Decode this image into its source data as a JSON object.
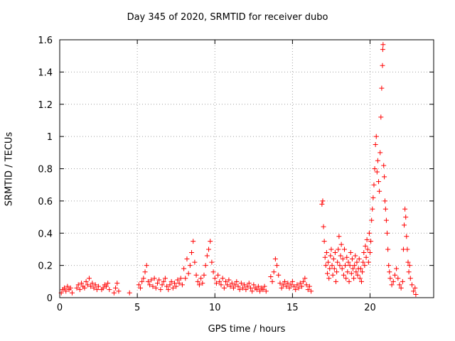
{
  "chart_data": {
    "type": "scatter",
    "title": "Day 345 of 2020, SRMTID for receiver dubo",
    "xlabel": "GPS time / hours",
    "ylabel": "SRMTID / TECUs",
    "xlim": [
      0,
      24.1
    ],
    "ylim": [
      0,
      1.6
    ],
    "xticks": [
      0,
      5,
      10,
      15,
      20
    ],
    "yticks": [
      0,
      0.2,
      0.4,
      0.6,
      0.8,
      1,
      1.2,
      1.4,
      1.6
    ],
    "ytick_labels": [
      "0",
      "0.2",
      "0.4",
      "0.6",
      "0.8",
      "1",
      "1.2",
      "1.4",
      "1.6"
    ],
    "grid": true,
    "marker": "plus",
    "color": "#ff0000",
    "series": [
      {
        "name": "SRMTID",
        "points": [
          [
            0.1,
            0.03
          ],
          [
            0.2,
            0.05
          ],
          [
            0.3,
            0.06
          ],
          [
            0.4,
            0.04
          ],
          [
            0.5,
            0.07
          ],
          [
            0.6,
            0.05
          ],
          [
            0.7,
            0.06
          ],
          [
            0.8,
            0.03
          ],
          [
            1.1,
            0.06
          ],
          [
            1.2,
            0.08
          ],
          [
            1.3,
            0.05
          ],
          [
            1.4,
            0.09
          ],
          [
            1.5,
            0.07
          ],
          [
            1.6,
            0.06
          ],
          [
            1.7,
            0.1
          ],
          [
            1.8,
            0.08
          ],
          [
            1.9,
            0.12
          ],
          [
            2.0,
            0.07
          ],
          [
            2.1,
            0.09
          ],
          [
            2.2,
            0.06
          ],
          [
            2.3,
            0.08
          ],
          [
            2.4,
            0.05
          ],
          [
            2.5,
            0.07
          ],
          [
            2.7,
            0.05
          ],
          [
            2.8,
            0.06
          ],
          [
            2.9,
            0.08
          ],
          [
            3.0,
            0.07
          ],
          [
            3.1,
            0.09
          ],
          [
            3.2,
            0.05
          ],
          [
            3.5,
            0.03
          ],
          [
            3.6,
            0.06
          ],
          [
            3.7,
            0.09
          ],
          [
            3.8,
            0.04
          ],
          [
            4.5,
            0.03
          ],
          [
            5.1,
            0.08
          ],
          [
            5.2,
            0.06
          ],
          [
            5.3,
            0.1
          ],
          [
            5.4,
            0.12
          ],
          [
            5.5,
            0.16
          ],
          [
            5.6,
            0.2
          ],
          [
            5.7,
            0.1
          ],
          [
            5.8,
            0.08
          ],
          [
            5.9,
            0.11
          ],
          [
            6.0,
            0.07
          ],
          [
            6.1,
            0.12
          ],
          [
            6.2,
            0.06
          ],
          [
            6.3,
            0.09
          ],
          [
            6.4,
            0.11
          ],
          [
            6.5,
            0.05
          ],
          [
            6.6,
            0.08
          ],
          [
            6.7,
            0.1
          ],
          [
            6.8,
            0.12
          ],
          [
            6.9,
            0.07
          ],
          [
            7.0,
            0.05
          ],
          [
            7.1,
            0.08
          ],
          [
            7.2,
            0.1
          ],
          [
            7.3,
            0.06
          ],
          [
            7.4,
            0.09
          ],
          [
            7.5,
            0.07
          ],
          [
            7.6,
            0.11
          ],
          [
            7.7,
            0.09
          ],
          [
            7.8,
            0.12
          ],
          [
            7.9,
            0.08
          ],
          [
            8.0,
            0.18
          ],
          [
            8.1,
            0.12
          ],
          [
            8.2,
            0.24
          ],
          [
            8.3,
            0.15
          ],
          [
            8.4,
            0.2
          ],
          [
            8.5,
            0.28
          ],
          [
            8.6,
            0.35
          ],
          [
            8.7,
            0.22
          ],
          [
            8.8,
            0.14
          ],
          [
            8.9,
            0.1
          ],
          [
            9.0,
            0.08
          ],
          [
            9.1,
            0.12
          ],
          [
            9.2,
            0.09
          ],
          [
            9.3,
            0.14
          ],
          [
            9.4,
            0.2
          ],
          [
            9.5,
            0.26
          ],
          [
            9.6,
            0.3
          ],
          [
            9.7,
            0.35
          ],
          [
            9.8,
            0.22
          ],
          [
            9.9,
            0.16
          ],
          [
            10.0,
            0.12
          ],
          [
            10.1,
            0.09
          ],
          [
            10.2,
            0.14
          ],
          [
            10.3,
            0.1
          ],
          [
            10.4,
            0.08
          ],
          [
            10.5,
            0.12
          ],
          [
            10.6,
            0.06
          ],
          [
            10.7,
            0.1
          ],
          [
            10.8,
            0.08
          ],
          [
            10.9,
            0.11
          ],
          [
            11.0,
            0.07
          ],
          [
            11.1,
            0.09
          ],
          [
            11.2,
            0.06
          ],
          [
            11.3,
            0.08
          ],
          [
            11.4,
            0.1
          ],
          [
            11.5,
            0.07
          ],
          [
            11.6,
            0.05
          ],
          [
            11.7,
            0.09
          ],
          [
            11.8,
            0.06
          ],
          [
            11.9,
            0.08
          ],
          [
            12.0,
            0.05
          ],
          [
            12.1,
            0.07
          ],
          [
            12.2,
            0.09
          ],
          [
            12.3,
            0.06
          ],
          [
            12.4,
            0.04
          ],
          [
            12.5,
            0.08
          ],
          [
            12.6,
            0.06
          ],
          [
            12.7,
            0.05
          ],
          [
            12.8,
            0.07
          ],
          [
            12.9,
            0.04
          ],
          [
            13.0,
            0.06
          ],
          [
            13.1,
            0.05
          ],
          [
            13.2,
            0.07
          ],
          [
            13.3,
            0.04
          ],
          [
            13.6,
            0.13
          ],
          [
            13.7,
            0.1
          ],
          [
            13.8,
            0.16
          ],
          [
            13.9,
            0.24
          ],
          [
            14.0,
            0.2
          ],
          [
            14.1,
            0.14
          ],
          [
            14.2,
            0.09
          ],
          [
            14.3,
            0.06
          ],
          [
            14.4,
            0.08
          ],
          [
            14.5,
            0.1
          ],
          [
            14.6,
            0.07
          ],
          [
            14.7,
            0.09
          ],
          [
            14.8,
            0.06
          ],
          [
            14.9,
            0.08
          ],
          [
            15.0,
            0.1
          ],
          [
            15.1,
            0.07
          ],
          [
            15.2,
            0.05
          ],
          [
            15.3,
            0.08
          ],
          [
            15.4,
            0.06
          ],
          [
            15.5,
            0.09
          ],
          [
            15.6,
            0.07
          ],
          [
            15.7,
            0.1
          ],
          [
            15.8,
            0.12
          ],
          [
            15.9,
            0.08
          ],
          [
            16.0,
            0.05
          ],
          [
            16.1,
            0.07
          ],
          [
            16.2,
            0.04
          ],
          [
            16.9,
            0.58
          ],
          [
            16.95,
            0.6
          ],
          [
            17.0,
            0.44
          ],
          [
            17.05,
            0.35
          ],
          [
            17.1,
            0.25
          ],
          [
            17.15,
            0.2
          ],
          [
            17.2,
            0.28
          ],
          [
            17.25,
            0.15
          ],
          [
            17.3,
            0.22
          ],
          [
            17.35,
            0.12
          ],
          [
            17.4,
            0.18
          ],
          [
            17.45,
            0.26
          ],
          [
            17.5,
            0.3
          ],
          [
            17.55,
            0.2
          ],
          [
            17.6,
            0.14
          ],
          [
            17.65,
            0.24
          ],
          [
            17.7,
            0.18
          ],
          [
            17.75,
            0.28
          ],
          [
            17.8,
            0.1
          ],
          [
            17.85,
            0.16
          ],
          [
            17.9,
            0.22
          ],
          [
            17.95,
            0.3
          ],
          [
            18.0,
            0.38
          ],
          [
            18.05,
            0.2
          ],
          [
            18.1,
            0.26
          ],
          [
            18.15,
            0.33
          ],
          [
            18.2,
            0.18
          ],
          [
            18.25,
            0.24
          ],
          [
            18.3,
            0.14
          ],
          [
            18.35,
            0.3
          ],
          [
            18.4,
            0.2
          ],
          [
            18.45,
            0.12
          ],
          [
            18.5,
            0.25
          ],
          [
            18.55,
            0.16
          ],
          [
            18.6,
            0.22
          ],
          [
            18.65,
            0.1
          ],
          [
            18.7,
            0.2
          ],
          [
            18.75,
            0.28
          ],
          [
            18.8,
            0.15
          ],
          [
            18.85,
            0.24
          ],
          [
            18.9,
            0.18
          ],
          [
            18.95,
            0.12
          ],
          [
            19.0,
            0.2
          ],
          [
            19.05,
            0.26
          ],
          [
            19.1,
            0.16
          ],
          [
            19.15,
            0.22
          ],
          [
            19.2,
            0.14
          ],
          [
            19.25,
            0.18
          ],
          [
            19.3,
            0.24
          ],
          [
            19.35,
            0.12
          ],
          [
            19.4,
            0.18
          ],
          [
            19.45,
            0.1
          ],
          [
            19.5,
            0.16
          ],
          [
            19.55,
            0.22
          ],
          [
            19.6,
            0.28
          ],
          [
            19.65,
            0.2
          ],
          [
            19.7,
            0.32
          ],
          [
            19.75,
            0.25
          ],
          [
            19.8,
            0.36
          ],
          [
            19.85,
            0.3
          ],
          [
            19.9,
            0.22
          ],
          [
            19.95,
            0.4
          ],
          [
            20.0,
            0.28
          ],
          [
            20.05,
            0.35
          ],
          [
            20.1,
            0.48
          ],
          [
            20.15,
            0.55
          ],
          [
            20.2,
            0.62
          ],
          [
            20.25,
            0.7
          ],
          [
            20.3,
            0.8
          ],
          [
            20.35,
            0.95
          ],
          [
            20.4,
            1.0
          ],
          [
            20.45,
            0.78
          ],
          [
            20.5,
            0.85
          ],
          [
            20.55,
            0.72
          ],
          [
            20.6,
            0.66
          ],
          [
            20.65,
            0.9
          ],
          [
            20.7,
            1.12
          ],
          [
            20.75,
            1.3
          ],
          [
            20.8,
            1.44
          ],
          [
            20.82,
            1.54
          ],
          [
            20.84,
            1.57
          ],
          [
            20.88,
            0.82
          ],
          [
            20.92,
            0.75
          ],
          [
            20.96,
            0.6
          ],
          [
            21.0,
            0.55
          ],
          [
            21.05,
            0.48
          ],
          [
            21.1,
            0.4
          ],
          [
            21.15,
            0.3
          ],
          [
            21.2,
            0.2
          ],
          [
            21.25,
            0.16
          ],
          [
            21.3,
            0.12
          ],
          [
            21.4,
            0.08
          ],
          [
            21.5,
            0.1
          ],
          [
            21.6,
            0.14
          ],
          [
            21.7,
            0.18
          ],
          [
            21.8,
            0.12
          ],
          [
            21.9,
            0.08
          ],
          [
            22.0,
            0.06
          ],
          [
            22.1,
            0.1
          ],
          [
            22.15,
            0.3
          ],
          [
            22.2,
            0.45
          ],
          [
            22.25,
            0.55
          ],
          [
            22.3,
            0.5
          ],
          [
            22.35,
            0.38
          ],
          [
            22.4,
            0.3
          ],
          [
            22.45,
            0.22
          ],
          [
            22.5,
            0.16
          ],
          [
            22.55,
            0.2
          ],
          [
            22.6,
            0.12
          ],
          [
            22.7,
            0.08
          ],
          [
            22.8,
            0.04
          ],
          [
            22.9,
            0.06
          ],
          [
            22.95,
            0.02
          ]
        ]
      }
    ]
  }
}
